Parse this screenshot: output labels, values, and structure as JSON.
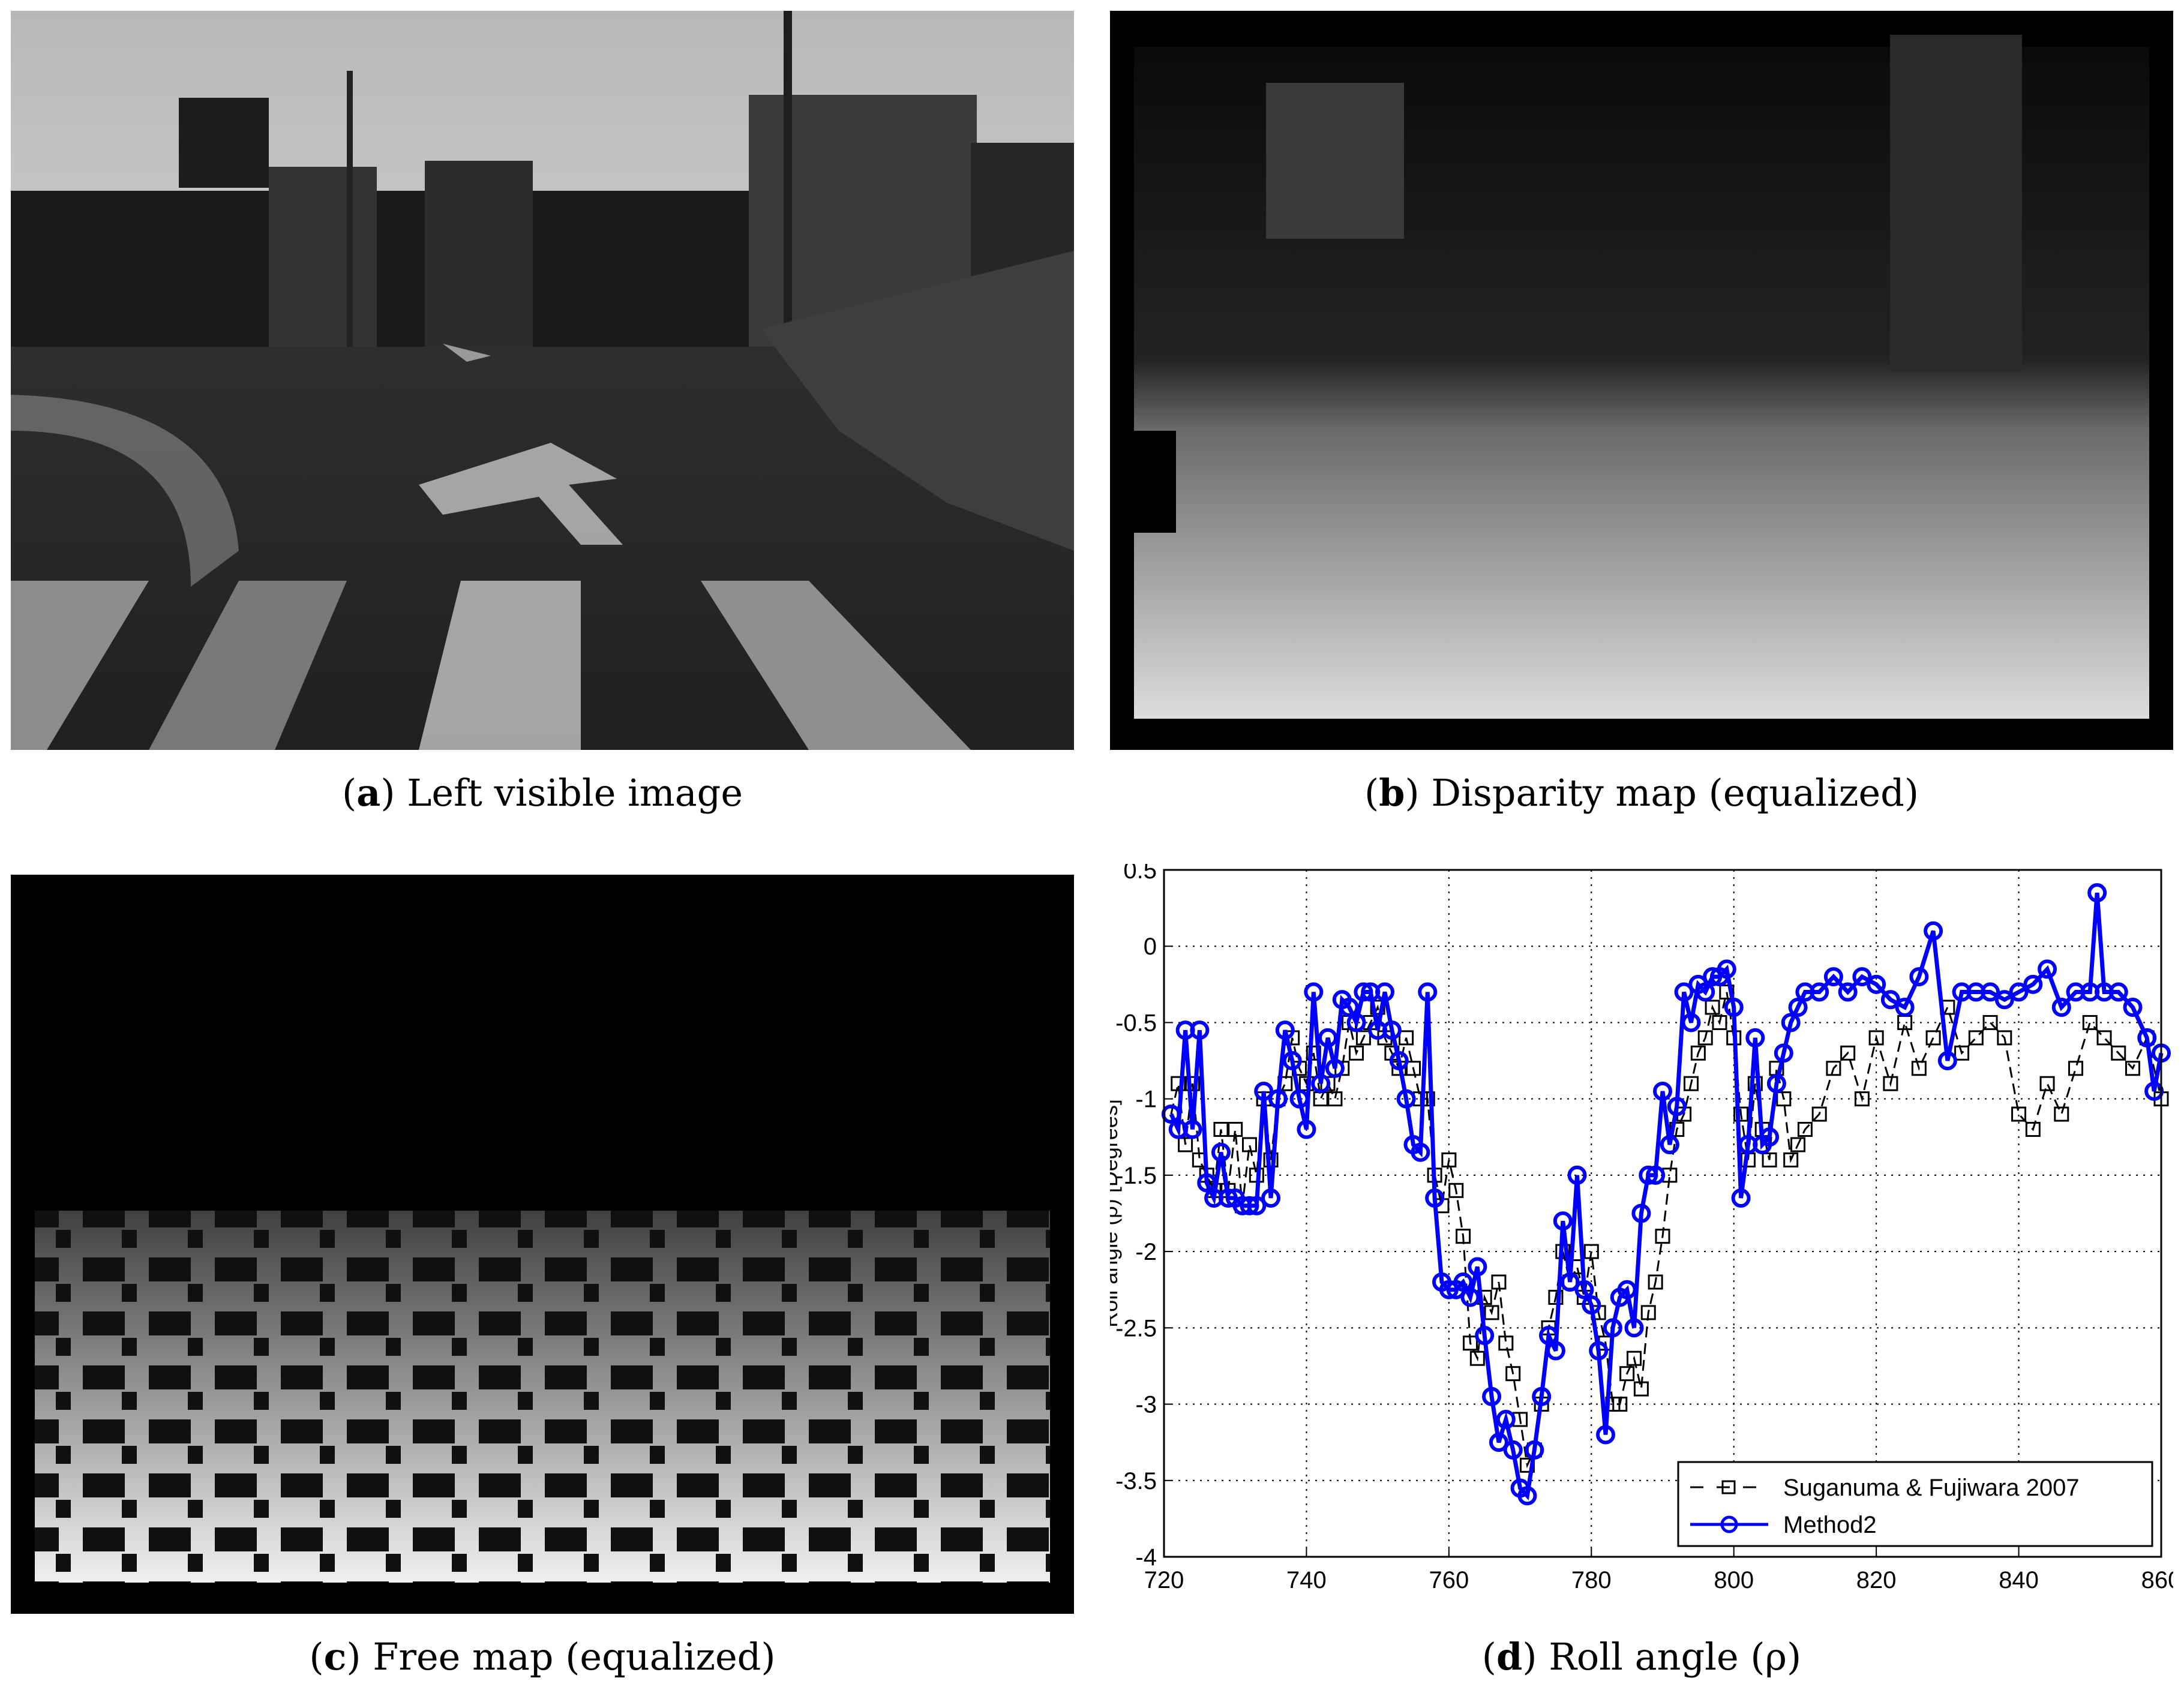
{
  "panels": {
    "a": {
      "letter": "a",
      "caption": "Left visible image"
    },
    "b": {
      "letter": "b",
      "caption": "Disparity map (equalized)"
    },
    "c": {
      "letter": "c",
      "caption": "Free map (equalized)"
    },
    "d": {
      "letter": "d",
      "caption": "Roll angle (ρ)"
    }
  },
  "chart_data": {
    "type": "line",
    "ylabel": "Roll angle (ρ) [Degrees]",
    "xlim": [
      720,
      860
    ],
    "ylim": [
      -4,
      0.5
    ],
    "xticks": [
      720,
      740,
      760,
      780,
      800,
      820,
      840,
      860
    ],
    "yticks": [
      0.5,
      0,
      -0.5,
      -1,
      -1.5,
      -2,
      -2.5,
      -3,
      -3.5,
      -4
    ],
    "grid": true,
    "legend_position": "bottom-right",
    "series": [
      {
        "name": "Suganuma & Fujiwara 2007",
        "color": "#000000",
        "marker": "square",
        "style": "dashed",
        "x": [
          721,
          722,
          723,
          724,
          725,
          726,
          727,
          728,
          729,
          730,
          731,
          732,
          733,
          734,
          735,
          736,
          737,
          738,
          739,
          740,
          741,
          742,
          743,
          744,
          745,
          746,
          747,
          748,
          749,
          750,
          751,
          752,
          753,
          754,
          755,
          756,
          757,
          758,
          759,
          760,
          761,
          762,
          763,
          764,
          765,
          766,
          767,
          768,
          769,
          770,
          771,
          772,
          773,
          774,
          775,
          776,
          777,
          778,
          779,
          780,
          781,
          782,
          783,
          784,
          785,
          786,
          787,
          788,
          789,
          790,
          791,
          792,
          793,
          794,
          795,
          796,
          797,
          798,
          799,
          800,
          801,
          802,
          803,
          804,
          805,
          806,
          807,
          808,
          809,
          810,
          812,
          814,
          816,
          818,
          820,
          822,
          824,
          826,
          828,
          830,
          832,
          834,
          836,
          838,
          840,
          842,
          844,
          846,
          848,
          850,
          852,
          854,
          856,
          858,
          860
        ],
        "y": [
          -1.1,
          -0.9,
          -1.3,
          -0.9,
          -1.4,
          -1.5,
          -1.6,
          -1.2,
          -1.6,
          -1.2,
          -1.7,
          -1.3,
          -1.5,
          -1.0,
          -1.4,
          -1.0,
          -0.9,
          -0.6,
          -0.8,
          -0.9,
          -0.7,
          -1.0,
          -0.9,
          -1.0,
          -0.8,
          -0.5,
          -0.7,
          -0.6,
          -0.5,
          -0.4,
          -0.6,
          -0.7,
          -0.8,
          -0.6,
          -0.8,
          -1.0,
          -1.0,
          -1.5,
          -1.7,
          -1.4,
          -1.6,
          -1.9,
          -2.6,
          -2.7,
          -2.3,
          -2.4,
          -2.2,
          -2.6,
          -2.8,
          -3.1,
          -3.4,
          -3.3,
          -3.0,
          -2.5,
          -2.3,
          -2.0,
          -2.2,
          -2.1,
          -2.3,
          -2.0,
          -2.4,
          -2.6,
          -3.0,
          -3.0,
          -2.8,
          -2.7,
          -2.9,
          -2.4,
          -2.2,
          -1.9,
          -1.5,
          -1.2,
          -1.1,
          -0.9,
          -0.7,
          -0.6,
          -0.4,
          -0.5,
          -0.3,
          -0.6,
          -1.1,
          -1.4,
          -0.9,
          -1.2,
          -1.4,
          -0.8,
          -1.0,
          -1.4,
          -1.3,
          -1.2,
          -1.1,
          -0.8,
          -0.7,
          -1.0,
          -0.6,
          -0.9,
          -0.5,
          -0.8,
          -0.6,
          -0.4,
          -0.7,
          -0.6,
          -0.5,
          -0.6,
          -1.1,
          -1.2,
          -0.9,
          -1.1,
          -0.8,
          -0.5,
          -0.6,
          -0.7,
          -0.8,
          -0.6,
          -1.0
        ]
      },
      {
        "name": "Method2",
        "color": "#0000ff",
        "marker": "circle",
        "style": "solid",
        "x": [
          721,
          722,
          723,
          724,
          725,
          726,
          727,
          728,
          729,
          730,
          731,
          732,
          733,
          734,
          735,
          736,
          737,
          738,
          739,
          740,
          741,
          742,
          743,
          744,
          745,
          746,
          747,
          748,
          749,
          750,
          751,
          752,
          753,
          754,
          755,
          756,
          757,
          758,
          759,
          760,
          761,
          762,
          763,
          764,
          765,
          766,
          767,
          768,
          769,
          770,
          771,
          772,
          773,
          774,
          775,
          776,
          777,
          778,
          779,
          780,
          781,
          782,
          783,
          784,
          785,
          786,
          787,
          788,
          789,
          790,
          791,
          792,
          793,
          794,
          795,
          796,
          797,
          798,
          799,
          800,
          801,
          802,
          803,
          804,
          805,
          806,
          807,
          808,
          809,
          810,
          812,
          814,
          816,
          818,
          820,
          822,
          824,
          826,
          828,
          830,
          832,
          834,
          836,
          838,
          840,
          842,
          844,
          846,
          848,
          850,
          851,
          852,
          854,
          856,
          858,
          859,
          860
        ],
        "y": [
          -1.1,
          -1.2,
          -0.55,
          -1.2,
          -0.55,
          -1.55,
          -1.65,
          -1.35,
          -1.65,
          -1.65,
          -1.7,
          -1.7,
          -1.7,
          -0.95,
          -1.65,
          -1.0,
          -0.55,
          -0.75,
          -1.0,
          -1.2,
          -0.3,
          -0.9,
          -0.6,
          -0.8,
          -0.35,
          -0.4,
          -0.5,
          -0.3,
          -0.3,
          -0.55,
          -0.3,
          -0.55,
          -0.75,
          -1.0,
          -1.3,
          -1.35,
          -0.3,
          -1.65,
          -2.2,
          -2.25,
          -2.25,
          -2.2,
          -2.3,
          -2.1,
          -2.55,
          -2.95,
          -3.25,
          -3.1,
          -3.3,
          -3.55,
          -3.6,
          -3.3,
          -2.95,
          -2.55,
          -2.65,
          -1.8,
          -2.2,
          -1.5,
          -2.25,
          -2.35,
          -2.65,
          -3.2,
          -2.5,
          -2.3,
          -2.25,
          -2.5,
          -1.75,
          -1.5,
          -1.5,
          -0.95,
          -1.3,
          -1.05,
          -0.3,
          -0.5,
          -0.25,
          -0.3,
          -0.2,
          -0.2,
          -0.15,
          -0.4,
          -1.65,
          -1.3,
          -0.6,
          -1.3,
          -1.25,
          -0.9,
          -0.7,
          -0.5,
          -0.4,
          -0.3,
          -0.3,
          -0.2,
          -0.3,
          -0.2,
          -0.25,
          -0.35,
          -0.4,
          -0.2,
          0.1,
          -0.75,
          -0.3,
          -0.3,
          -0.3,
          -0.35,
          -0.3,
          -0.25,
          -0.15,
          -0.4,
          -0.3,
          -0.3,
          0.35,
          -0.3,
          -0.3,
          -0.4,
          -0.6,
          -0.95,
          -0.7
        ]
      }
    ]
  }
}
